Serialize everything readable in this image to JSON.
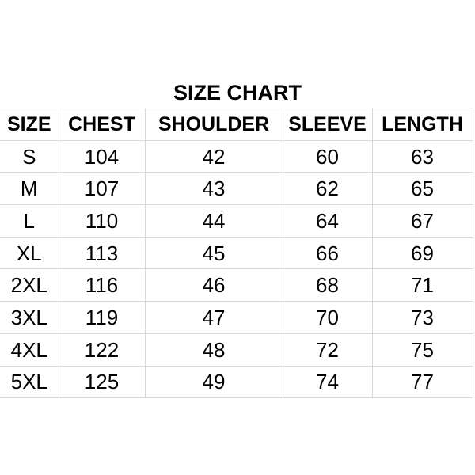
{
  "title": "SIZE CHART",
  "headers": [
    "SIZE",
    "CHEST",
    "SHOULDER",
    "SLEEVE",
    "LENGTH"
  ],
  "rows": [
    [
      "S",
      "104",
      "42",
      "60",
      "63"
    ],
    [
      "M",
      "107",
      "43",
      "62",
      "65"
    ],
    [
      "L",
      "110",
      "44",
      "64",
      "67"
    ],
    [
      "XL",
      "113",
      "45",
      "66",
      "69"
    ],
    [
      "2XL",
      "116",
      "46",
      "68",
      "71"
    ],
    [
      "3XL",
      "119",
      "47",
      "70",
      "73"
    ],
    [
      "4XL",
      "122",
      "48",
      "72",
      "75"
    ],
    [
      "5XL",
      "125",
      "49",
      "74",
      "77"
    ]
  ]
}
